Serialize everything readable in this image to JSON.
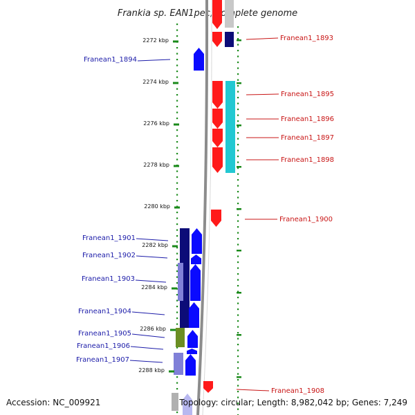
{
  "title": "Frankia sp. EAN1pec, complete genome",
  "footer": {
    "accession": "Accession: NC_009921",
    "stats": "Topology: circular; Length: 8,982,042 bp; Genes: 7,249"
  },
  "colors": {
    "backbone": "#8c8c8c",
    "ruler": "#1a8a1a",
    "forward_gene": "#0a0aff",
    "reverse_gene": "#ff1a1a",
    "cyan_track": "#22c8d2",
    "navy_track": "#0c0c78",
    "purple_track": "#8080d8",
    "olive_track": "#6b8e23",
    "label_left": "#1a1aa8",
    "label_right": "#c81414"
  },
  "ruler_ticks": [
    "2272 kbp",
    "2274 kbp",
    "2276 kbp",
    "2278 kbp",
    "2280 kbp",
    "2282 kbp",
    "2284 kbp",
    "2286 kbp",
    "2288 kbp"
  ],
  "genes_left": [
    "Franean1_1894",
    "Franean1_1901",
    "Franean1_1902",
    "Franean1_1903",
    "Franean1_1904",
    "Franean1_1905",
    "Franean1_1906",
    "Franean1_1907"
  ],
  "genes_right": [
    "Franean1_1893",
    "Franean1_1895",
    "Franean1_1896",
    "Franean1_1897",
    "Franean1_1898",
    "Franean1_1900",
    "Franean1_1908"
  ]
}
